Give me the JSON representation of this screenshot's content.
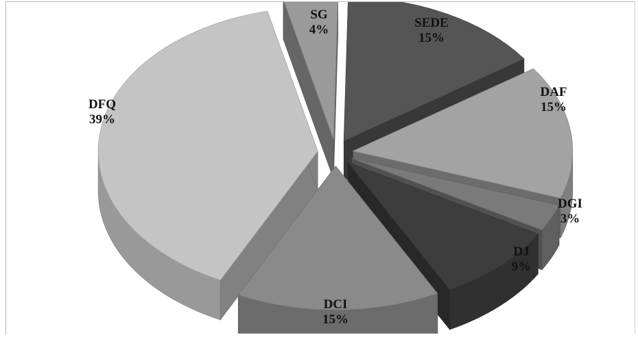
{
  "chart_data": {
    "type": "pie",
    "style": "3d-exploded",
    "title": "",
    "legend": "none",
    "slices": [
      {
        "name": "SEDE",
        "label": "15%",
        "value": 15,
        "color": "#555555"
      },
      {
        "name": "DAF",
        "label": "15%",
        "value": 15,
        "color": "#a3a3a3"
      },
      {
        "name": "DGI",
        "label": "3%",
        "value": 3,
        "color": "#7a7a7a"
      },
      {
        "name": "DJ",
        "label": "9%",
        "value": 9,
        "color": "#3d3d3d"
      },
      {
        "name": "DCI",
        "label": "15%",
        "value": 15,
        "color": "#8a8a8a"
      },
      {
        "name": "DFQ",
        "label": "39%",
        "value": 39,
        "color": "#c4c4c4"
      },
      {
        "name": "SG",
        "label": "4%",
        "value": 4,
        "color": "#9a9a9a"
      }
    ]
  }
}
